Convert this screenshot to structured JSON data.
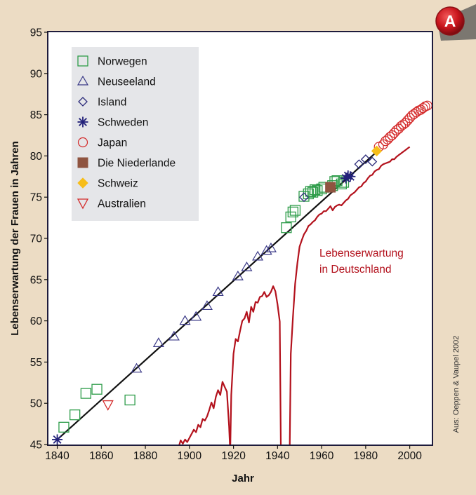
{
  "badge": "A",
  "source": "Aus: Oeppen & Vaupel 2002",
  "chart_data": {
    "type": "scatter",
    "xlabel": "Jahr",
    "ylabel": "Lebenserwartung der Frauen in Jahren",
    "xlim": [
      1836,
      2010
    ],
    "ylim": [
      45,
      95
    ],
    "xticks": [
      1840,
      1860,
      1880,
      1900,
      1920,
      1940,
      1960,
      1980,
      2000
    ],
    "yticks": [
      45,
      50,
      55,
      60,
      65,
      70,
      75,
      80,
      85,
      90,
      95
    ],
    "grid": false,
    "legend_position": "top-left",
    "annotation": [
      "Lebenserwartung",
      "in Deutschland"
    ],
    "colors": {
      "frame": "#1e1b3c",
      "germany": "#b3121d",
      "trend": "#111111"
    },
    "series": [
      {
        "name": "Norwegen",
        "marker": "square-open",
        "color": "#2d9c49",
        "points": [
          [
            1843,
            47.1
          ],
          [
            1848,
            48.6
          ],
          [
            1853,
            51.2
          ],
          [
            1858,
            51.7
          ],
          [
            1873,
            50.4
          ],
          [
            1944,
            71.3
          ],
          [
            1946,
            72.6
          ],
          [
            1947,
            73.2
          ],
          [
            1948,
            73.4
          ],
          [
            1952,
            75.1
          ],
          [
            1954,
            75.4
          ],
          [
            1955,
            75.7
          ],
          [
            1956,
            75.6
          ],
          [
            1957,
            75.9
          ],
          [
            1958,
            75.8
          ],
          [
            1960,
            76.0
          ],
          [
            1961,
            76.2
          ],
          [
            1965,
            76.4
          ],
          [
            1966,
            76.9
          ],
          [
            1967,
            77.0
          ],
          [
            1969,
            76.6
          ],
          [
            1970,
            76.8
          ]
        ]
      },
      {
        "name": "Neuseeland",
        "marker": "triangle-open",
        "color": "#3b3a88",
        "points": [
          [
            1876,
            54.2
          ],
          [
            1886,
            57.3
          ],
          [
            1893,
            58.1
          ],
          [
            1898,
            60.0
          ],
          [
            1903,
            60.5
          ],
          [
            1908,
            61.8
          ],
          [
            1913,
            63.5
          ],
          [
            1922,
            65.4
          ],
          [
            1926,
            66.5
          ],
          [
            1931,
            67.8
          ],
          [
            1935,
            68.5
          ],
          [
            1937,
            68.8
          ]
        ]
      },
      {
        "name": "Island",
        "marker": "diamond-open",
        "color": "#2b2a7a",
        "points": [
          [
            1952,
            75.0
          ],
          [
            1977,
            79.0
          ],
          [
            1980,
            79.6
          ],
          [
            1983,
            79.3
          ]
        ]
      },
      {
        "name": "Schweden",
        "marker": "asterisk",
        "color": "#22217a",
        "points": [
          [
            1840,
            45.6
          ],
          [
            1971,
            77.3
          ],
          [
            1972,
            77.6
          ],
          [
            1973,
            77.5
          ]
        ]
      },
      {
        "name": "Japan",
        "marker": "circle-open",
        "color": "#d42a2a",
        "points": [
          [
            1986,
            81.1
          ],
          [
            1988,
            81.4
          ],
          [
            1989,
            81.8
          ],
          [
            1990,
            82.0
          ],
          [
            1991,
            82.3
          ],
          [
            1992,
            82.5
          ],
          [
            1993,
            82.8
          ],
          [
            1994,
            83.1
          ],
          [
            1995,
            83.3
          ],
          [
            1996,
            83.6
          ],
          [
            1997,
            83.8
          ],
          [
            1998,
            84.0
          ],
          [
            1999,
            84.3
          ],
          [
            2000,
            84.6
          ],
          [
            2001,
            84.9
          ],
          [
            2002,
            85.1
          ],
          [
            2003,
            85.3
          ],
          [
            2004,
            85.5
          ],
          [
            2005,
            85.6
          ],
          [
            2006,
            85.8
          ],
          [
            2007,
            86.0
          ],
          [
            2008,
            86.1
          ]
        ]
      },
      {
        "name": "Die Niederlande",
        "marker": "square-filled",
        "color": "#8f5440",
        "points": [
          [
            1964,
            76.2
          ]
        ]
      },
      {
        "name": "Schweiz",
        "marker": "diamond-filled",
        "color": "#f7be1a",
        "points": [
          [
            1985,
            80.6
          ]
        ]
      },
      {
        "name": "Australien",
        "marker": "triangle-down-open",
        "color": "#d42a2a",
        "points": [
          [
            1863,
            49.8
          ]
        ]
      }
    ],
    "trend_line": [
      [
        1840,
        45.6
      ],
      [
        1985,
        80.5
      ]
    ],
    "germany": {
      "name": "Lebenserwartung in Deutschland",
      "points": [
        [
          1890,
          44.3
        ],
        [
          1895,
          44.6
        ],
        [
          1896,
          45.5
        ],
        [
          1897,
          45.1
        ],
        [
          1898,
          45.6
        ],
        [
          1899,
          45.3
        ],
        [
          1900,
          45.8
        ],
        [
          1901,
          46.3
        ],
        [
          1902,
          46.8
        ],
        [
          1903,
          46.5
        ],
        [
          1904,
          47.4
        ],
        [
          1905,
          47.1
        ],
        [
          1906,
          48.1
        ],
        [
          1907,
          47.9
        ],
        [
          1908,
          48.4
        ],
        [
          1909,
          49.2
        ],
        [
          1910,
          50.1
        ],
        [
          1911,
          49.4
        ],
        [
          1912,
          50.8
        ],
        [
          1913,
          51.6
        ],
        [
          1914,
          51.0
        ],
        [
          1915,
          52.6
        ],
        [
          1916,
          52.0
        ],
        [
          1917,
          51.4
        ],
        [
          1918,
          47.2
        ],
        [
          1918.5,
          44.0
        ],
        [
          1919,
          51.0
        ],
        [
          1920,
          56.0
        ],
        [
          1921,
          57.8
        ],
        [
          1922,
          57.5
        ],
        [
          1923,
          58.8
        ],
        [
          1924,
          60.0
        ],
        [
          1925,
          60.3
        ],
        [
          1926,
          61.1
        ],
        [
          1927,
          59.8
        ],
        [
          1928,
          61.7
        ],
        [
          1929,
          61.1
        ],
        [
          1930,
          62.3
        ],
        [
          1931,
          62.2
        ],
        [
          1932,
          62.9
        ],
        [
          1933,
          63.0
        ],
        [
          1934,
          63.5
        ],
        [
          1935,
          62.9
        ],
        [
          1936,
          63.1
        ],
        [
          1937,
          63.5
        ],
        [
          1938,
          64.2
        ],
        [
          1939,
          63.6
        ],
        [
          1940,
          62.0
        ],
        [
          1941,
          59.9
        ],
        [
          1941.5,
          44.0
        ],
        [
          1945.5,
          44.0
        ],
        [
          1946,
          56.0
        ],
        [
          1947,
          60.5
        ],
        [
          1948,
          64.5
        ],
        [
          1949,
          67.0
        ],
        [
          1950,
          69.0
        ],
        [
          1951,
          69.8
        ],
        [
          1952,
          70.5
        ],
        [
          1953,
          70.9
        ],
        [
          1954,
          71.5
        ],
        [
          1955,
          71.7
        ],
        [
          1956,
          72.0
        ],
        [
          1957,
          72.2
        ],
        [
          1958,
          72.6
        ],
        [
          1959,
          72.9
        ],
        [
          1960,
          73.0
        ],
        [
          1961,
          73.3
        ],
        [
          1962,
          73.3
        ],
        [
          1963,
          73.6
        ],
        [
          1964,
          73.9
        ],
        [
          1965,
          73.4
        ],
        [
          1966,
          73.8
        ],
        [
          1967,
          74.0
        ],
        [
          1968,
          74.1
        ],
        [
          1969,
          74.0
        ],
        [
          1970,
          74.3
        ],
        [
          1971,
          74.6
        ],
        [
          1972,
          74.8
        ],
        [
          1973,
          75.2
        ],
        [
          1974,
          75.4
        ],
        [
          1975,
          75.6
        ],
        [
          1976,
          75.9
        ],
        [
          1977,
          76.2
        ],
        [
          1978,
          76.3
        ],
        [
          1979,
          76.7
        ],
        [
          1980,
          76.9
        ],
        [
          1981,
          77.3
        ],
        [
          1982,
          77.6
        ],
        [
          1983,
          77.7
        ],
        [
          1984,
          78.1
        ],
        [
          1985,
          78.3
        ],
        [
          1986,
          78.4
        ],
        [
          1987,
          78.8
        ],
        [
          1988,
          79.0
        ],
        [
          1989,
          79.1
        ],
        [
          1990,
          79.2
        ],
        [
          1991,
          79.3
        ],
        [
          1992,
          79.6
        ],
        [
          1993,
          79.6
        ],
        [
          1994,
          79.9
        ],
        [
          1995,
          80.1
        ],
        [
          1996,
          80.3
        ],
        [
          1997,
          80.5
        ],
        [
          1998,
          80.7
        ],
        [
          1999,
          80.9
        ],
        [
          2000,
          81.1
        ]
      ]
    }
  }
}
